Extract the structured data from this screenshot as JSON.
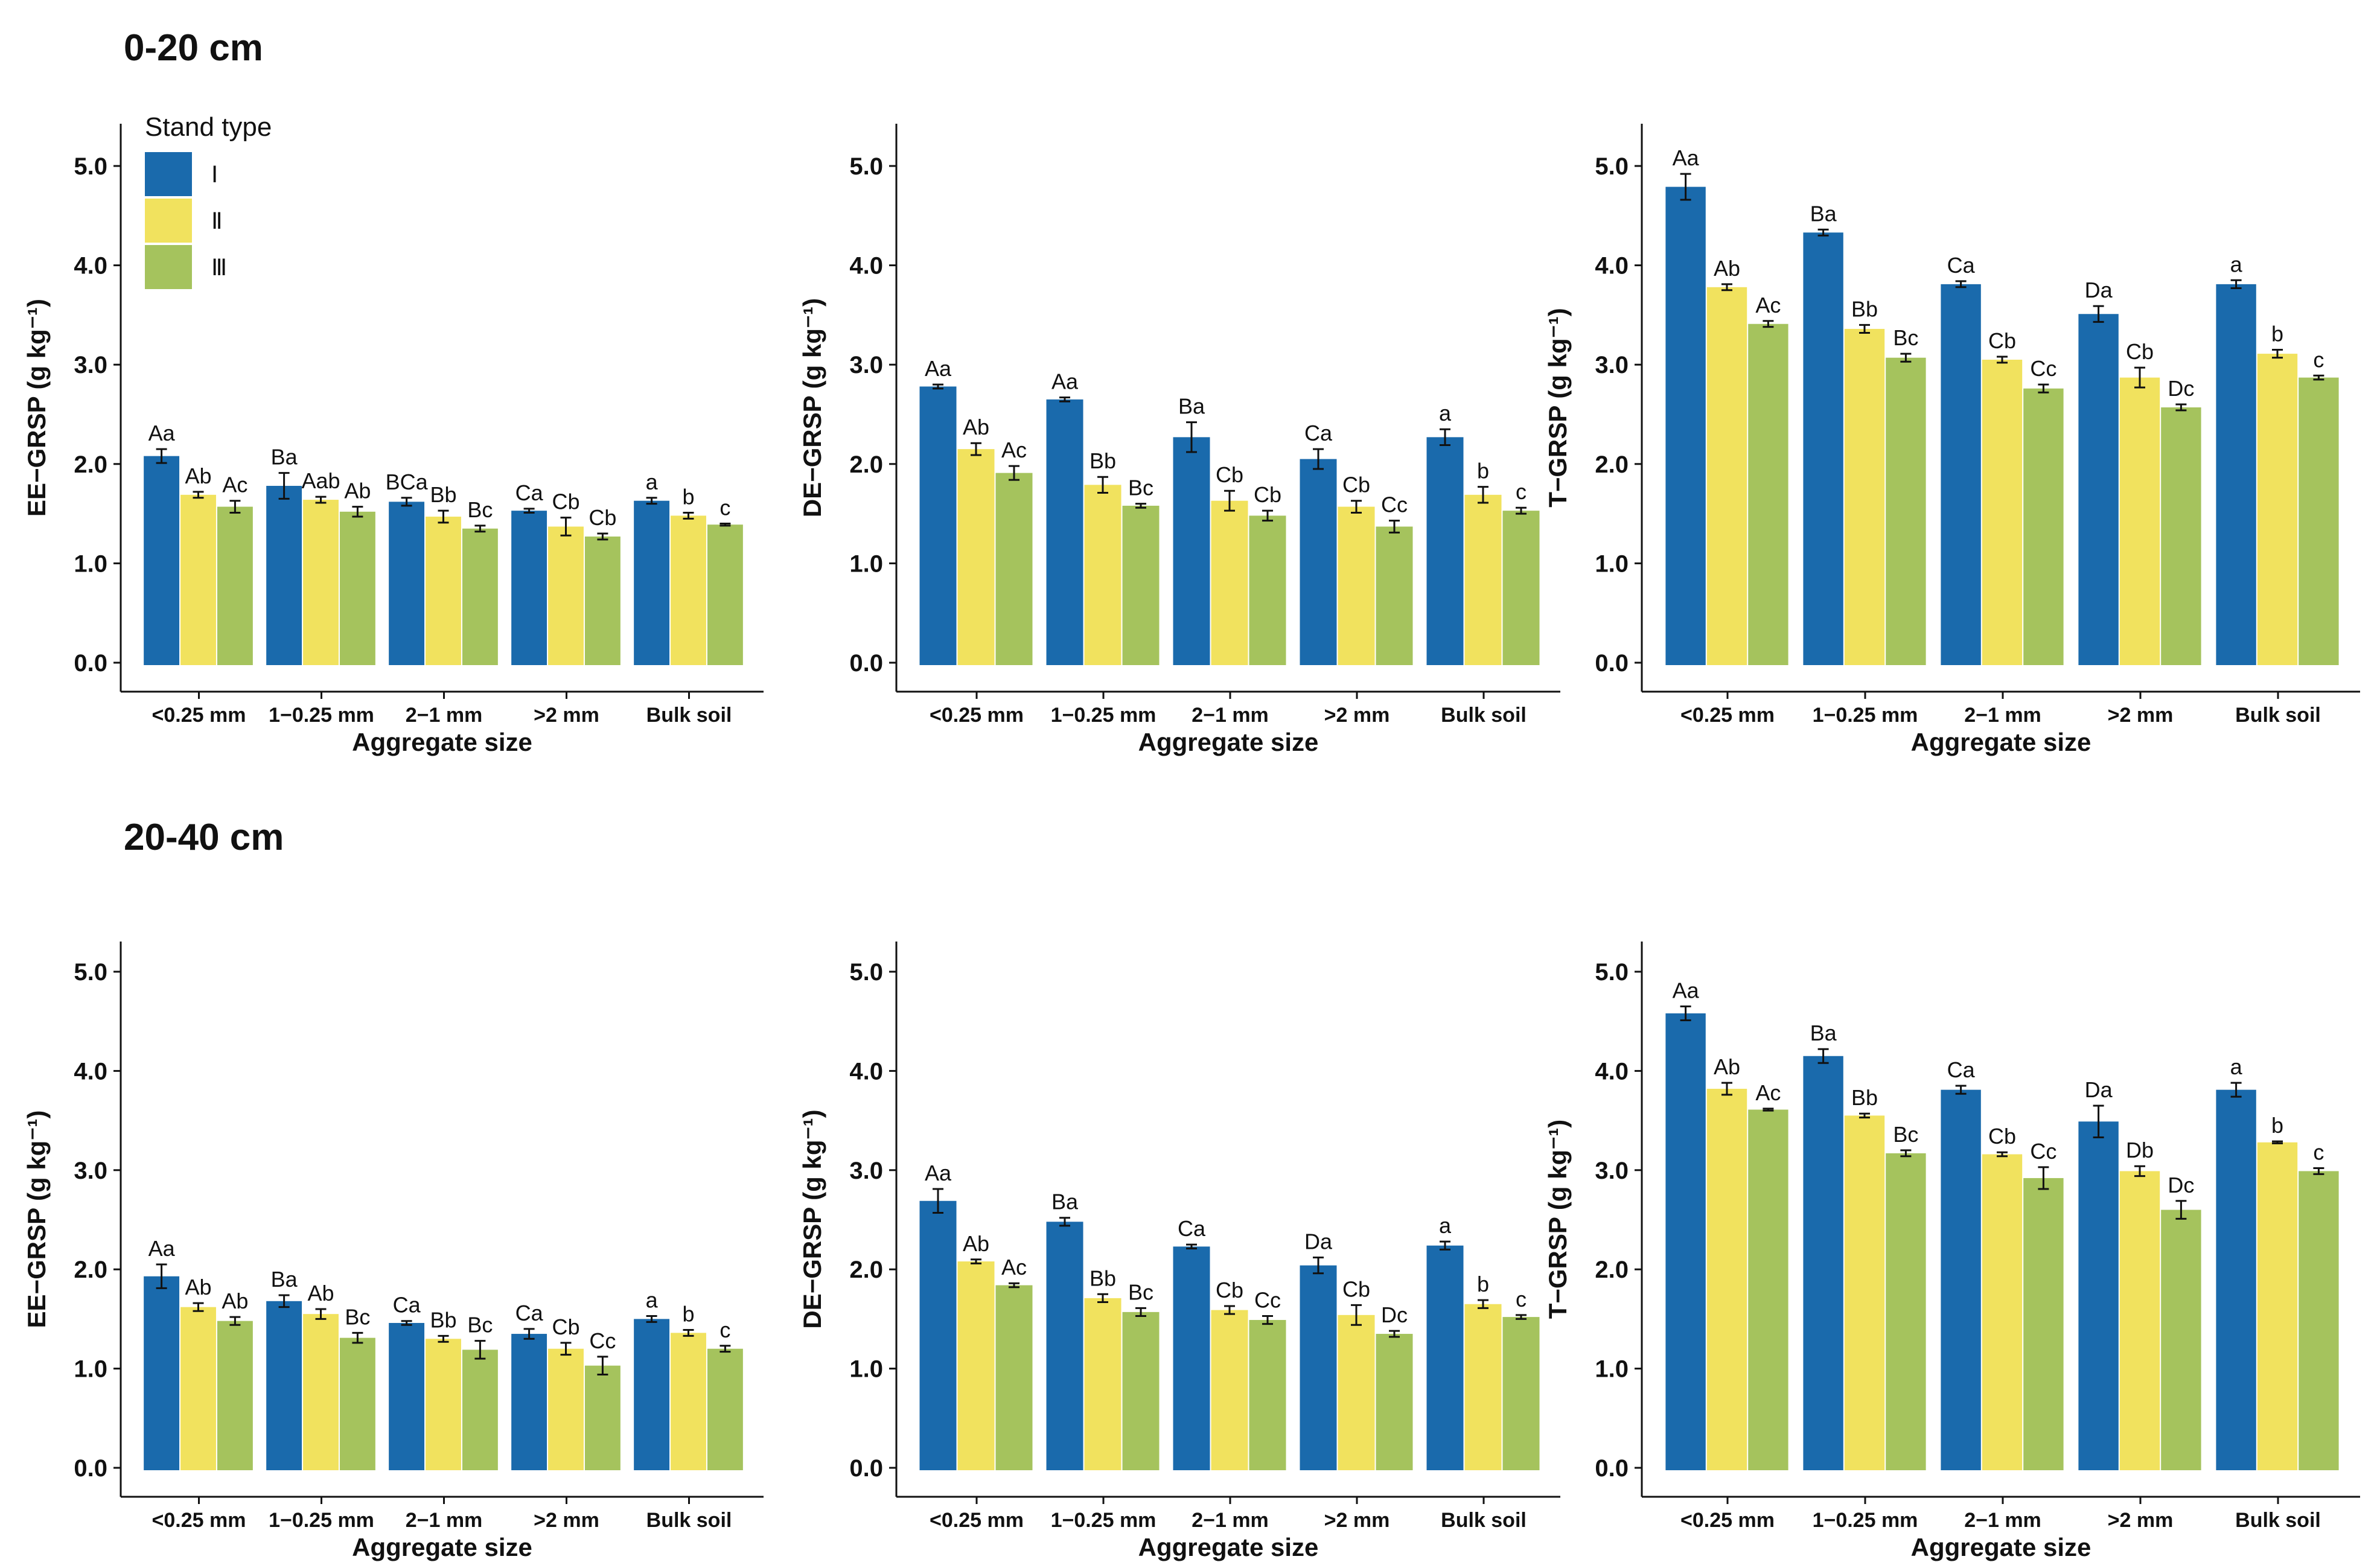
{
  "sections": [
    {
      "title": "0-20 cm"
    },
    {
      "title": "20-40 cm"
    }
  ],
  "legend": {
    "title": "Stand type",
    "entries": [
      {
        "name": "Ⅰ",
        "color": "#1a6aac"
      },
      {
        "name": "Ⅱ",
        "color": "#f1e25e"
      },
      {
        "name": "Ⅲ",
        "color": "#a5c35d"
      }
    ]
  },
  "chart_data": [
    {
      "type": "bar",
      "section": "0-20 cm",
      "ylabel": "EE−GRSP (g kg⁻¹)",
      "xlabel": "Aggregate size",
      "ylim": [
        0,
        5.0
      ],
      "yticks": [
        "0.0",
        "1.0",
        "2.0",
        "3.0",
        "4.0",
        "5.0"
      ],
      "categories": [
        "<0.25 mm",
        "1−0.25 mm",
        "2−1 mm",
        ">2 mm",
        "Bulk soil"
      ],
      "series": [
        {
          "name": "Ⅰ",
          "values": [
            2.08,
            1.78,
            1.62,
            1.53,
            1.63
          ],
          "errors": [
            0.07,
            0.13,
            0.04,
            0.02,
            0.03
          ],
          "labels": [
            "Aa",
            "Ba",
            "BCa",
            "Ca",
            "a"
          ]
        },
        {
          "name": "Ⅱ",
          "values": [
            1.69,
            1.64,
            1.47,
            1.37,
            1.48
          ],
          "errors": [
            0.03,
            0.03,
            0.06,
            0.09,
            0.03
          ],
          "labels": [
            "Ab",
            "Aab",
            "Bb",
            "Cb",
            "b"
          ]
        },
        {
          "name": "Ⅲ",
          "values": [
            1.57,
            1.52,
            1.35,
            1.27,
            1.39
          ],
          "errors": [
            0.06,
            0.05,
            0.03,
            0.03,
            0.01
          ],
          "labels": [
            "Ac",
            "Ab",
            "Bc",
            "Cb",
            "c"
          ]
        }
      ]
    },
    {
      "type": "bar",
      "section": "0-20 cm",
      "ylabel": "DE−GRSP (g kg⁻¹)",
      "xlabel": "Aggregate size",
      "ylim": [
        0,
        5.0
      ],
      "yticks": [
        "0.0",
        "1.0",
        "2.0",
        "3.0",
        "4.0",
        "5.0"
      ],
      "categories": [
        "<0.25 mm",
        "1−0.25 mm",
        "2−1 mm",
        ">2 mm",
        "Bulk soil"
      ],
      "series": [
        {
          "name": "Ⅰ",
          "values": [
            2.78,
            2.65,
            2.27,
            2.05,
            2.27
          ],
          "errors": [
            0.02,
            0.02,
            0.15,
            0.1,
            0.08
          ],
          "labels": [
            "Aa",
            "Aa",
            "Ba",
            "Ca",
            "a"
          ]
        },
        {
          "name": "Ⅱ",
          "values": [
            2.15,
            1.79,
            1.63,
            1.57,
            1.69
          ],
          "errors": [
            0.06,
            0.08,
            0.1,
            0.06,
            0.08
          ],
          "labels": [
            "Ab",
            "Bb",
            "Cb",
            "Cb",
            "b"
          ]
        },
        {
          "name": "Ⅲ",
          "values": [
            1.91,
            1.58,
            1.48,
            1.37,
            1.53
          ],
          "errors": [
            0.07,
            0.02,
            0.05,
            0.06,
            0.03
          ],
          "labels": [
            "Ac",
            "Bc",
            "Cb",
            "Cc",
            "c"
          ]
        }
      ]
    },
    {
      "type": "bar",
      "section": "0-20 cm",
      "ylabel": "T−GRSP (g kg⁻¹)",
      "xlabel": "Aggregate size",
      "ylim": [
        0,
        5.0
      ],
      "yticks": [
        "0.0",
        "1.0",
        "2.0",
        "3.0",
        "4.0",
        "5.0"
      ],
      "categories": [
        "<0.25 mm",
        "1−0.25 mm",
        "2−1 mm",
        ">2 mm",
        "Bulk soil"
      ],
      "series": [
        {
          "name": "Ⅰ",
          "values": [
            4.79,
            4.33,
            3.81,
            3.51,
            3.81
          ],
          "errors": [
            0.13,
            0.03,
            0.03,
            0.08,
            0.04
          ],
          "labels": [
            "Aa",
            "Ba",
            "Ca",
            "Da",
            "a"
          ]
        },
        {
          "name": "Ⅱ",
          "values": [
            3.78,
            3.36,
            3.05,
            2.87,
            3.11
          ],
          "errors": [
            0.03,
            0.04,
            0.03,
            0.1,
            0.04
          ],
          "labels": [
            "Ab",
            "Bb",
            "Cb",
            "Cb",
            "b"
          ]
        },
        {
          "name": "Ⅲ",
          "values": [
            3.41,
            3.07,
            2.76,
            2.57,
            2.87
          ],
          "errors": [
            0.03,
            0.04,
            0.04,
            0.03,
            0.02
          ],
          "labels": [
            "Ac",
            "Bc",
            "Cc",
            "Dc",
            "c"
          ]
        }
      ]
    },
    {
      "type": "bar",
      "section": "20-40 cm",
      "ylabel": "EE−GRSP (g kg⁻¹)",
      "xlabel": "Aggregate size",
      "ylim": [
        0,
        5.0
      ],
      "yticks": [
        "0.0",
        "1.0",
        "2.0",
        "3.0",
        "4.0",
        "5.0"
      ],
      "categories": [
        "<0.25 mm",
        "1−0.25 mm",
        "2−1 mm",
        ">2 mm",
        "Bulk soil"
      ],
      "series": [
        {
          "name": "Ⅰ",
          "values": [
            1.93,
            1.68,
            1.46,
            1.35,
            1.5
          ],
          "errors": [
            0.12,
            0.06,
            0.02,
            0.05,
            0.03
          ],
          "labels": [
            "Aa",
            "Ba",
            "Ca",
            "Ca",
            "a"
          ]
        },
        {
          "name": "Ⅱ",
          "values": [
            1.62,
            1.55,
            1.3,
            1.2,
            1.36
          ],
          "errors": [
            0.04,
            0.05,
            0.03,
            0.06,
            0.03
          ],
          "labels": [
            "Ab",
            "Ab",
            "Bb",
            "Cb",
            "b"
          ]
        },
        {
          "name": "Ⅲ",
          "values": [
            1.48,
            1.31,
            1.19,
            1.03,
            1.2
          ],
          "errors": [
            0.04,
            0.05,
            0.09,
            0.09,
            0.03
          ],
          "labels": [
            "Ab",
            "Bc",
            "Bc",
            "Cc",
            "c"
          ]
        }
      ]
    },
    {
      "type": "bar",
      "section": "20-40 cm",
      "ylabel": "DE−GRSP (g kg⁻¹)",
      "xlabel": "Aggregate size",
      "ylim": [
        0,
        5.0
      ],
      "yticks": [
        "0.0",
        "1.0",
        "2.0",
        "3.0",
        "4.0",
        "5.0"
      ],
      "categories": [
        "<0.25 mm",
        "1−0.25 mm",
        "2−1 mm",
        ">2 mm",
        "Bulk soil"
      ],
      "series": [
        {
          "name": "Ⅰ",
          "values": [
            2.69,
            2.48,
            2.23,
            2.04,
            2.24
          ],
          "errors": [
            0.12,
            0.04,
            0.02,
            0.08,
            0.04
          ],
          "labels": [
            "Aa",
            "Ba",
            "Ca",
            "Da",
            "a"
          ]
        },
        {
          "name": "Ⅱ",
          "values": [
            2.08,
            1.71,
            1.59,
            1.54,
            1.65
          ],
          "errors": [
            0.02,
            0.04,
            0.04,
            0.1,
            0.04
          ],
          "labels": [
            "Ab",
            "Bb",
            "Cb",
            "Cb",
            "b"
          ]
        },
        {
          "name": "Ⅲ",
          "values": [
            1.84,
            1.57,
            1.49,
            1.35,
            1.52
          ],
          "errors": [
            0.02,
            0.04,
            0.04,
            0.03,
            0.02
          ],
          "labels": [
            "Ac",
            "Bc",
            "Cc",
            "Dc",
            "c"
          ]
        }
      ]
    },
    {
      "type": "bar",
      "section": "20-40 cm",
      "ylabel": "T−GRSP (g kg⁻¹)",
      "xlabel": "Aggregate size",
      "ylim": [
        0,
        5.0
      ],
      "yticks": [
        "0.0",
        "1.0",
        "2.0",
        "3.0",
        "4.0",
        "5.0"
      ],
      "categories": [
        "<0.25 mm",
        "1−0.25 mm",
        "2−1 mm",
        ">2 mm",
        "Bulk soil"
      ],
      "series": [
        {
          "name": "Ⅰ",
          "values": [
            4.58,
            4.15,
            3.81,
            3.49,
            3.81
          ],
          "errors": [
            0.07,
            0.07,
            0.04,
            0.16,
            0.07
          ],
          "labels": [
            "Aa",
            "Ba",
            "Ca",
            "Da",
            "a"
          ]
        },
        {
          "name": "Ⅱ",
          "values": [
            3.82,
            3.55,
            3.16,
            2.99,
            3.28
          ],
          "errors": [
            0.06,
            0.02,
            0.02,
            0.05,
            0.01
          ],
          "labels": [
            "Ab",
            "Bb",
            "Cb",
            "Db",
            "b"
          ]
        },
        {
          "name": "Ⅲ",
          "values": [
            3.61,
            3.17,
            2.92,
            2.6,
            2.99
          ],
          "errors": [
            0.01,
            0.03,
            0.11,
            0.09,
            0.03
          ],
          "labels": [
            "Ac",
            "Bc",
            "Cc",
            "Dc",
            "c"
          ]
        }
      ]
    }
  ]
}
